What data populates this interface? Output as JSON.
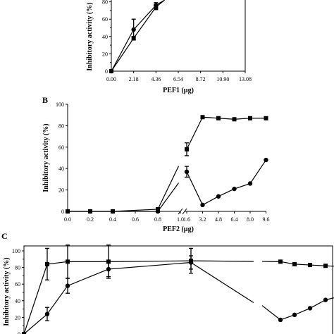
{
  "chart_data": [
    {
      "panel": "",
      "type": "line",
      "xlabel": "PEF1 (µg)",
      "ylabel": "Inhibitory activity (%)",
      "x_ticks": [
        "0.00",
        "2.18",
        "4.36",
        "6.54",
        "8.72",
        "10.90",
        "13.08"
      ],
      "y_ticks": [
        "0",
        "20",
        "40",
        "60",
        "80"
      ],
      "xlim": [
        0,
        13.08
      ],
      "ylim": [
        0,
        100
      ],
      "series": [
        {
          "marker": "circle",
          "x": [
            0,
            2.18,
            4.36,
            5.2
          ],
          "y": [
            0,
            48,
            76,
            82
          ],
          "err": [
            0,
            12,
            3,
            0
          ]
        },
        {
          "marker": "square",
          "x": [
            0,
            2.18,
            4.36,
            5.2
          ],
          "y": [
            0,
            38,
            74,
            82
          ],
          "err": [
            0,
            2,
            3,
            0
          ]
        }
      ]
    },
    {
      "panel": "B",
      "type": "line",
      "xlabel": "PEF2 (µg)",
      "ylabel": "Inhibitory activity (%)",
      "x_ticks": [
        "0.0",
        "0.2",
        "0.4",
        "0.6",
        "0.8",
        "1.0",
        "1.6",
        "3.2",
        "4.8",
        "6.4",
        "8.0",
        "9.6"
      ],
      "y_ticks": [
        "0",
        "20",
        "40",
        "60",
        "80",
        "100"
      ],
      "ylim": [
        0,
        100
      ],
      "axis_break": true,
      "series": [
        {
          "marker": "square",
          "x": [
            "0.0",
            "0.2",
            "0.4",
            "0.8",
            "1.6",
            "3.2",
            "4.8",
            "6.4",
            "8.0",
            "9.6"
          ],
          "y": [
            0,
            0,
            0,
            2,
            58,
            88,
            87,
            86,
            87,
            87
          ],
          "err": [
            0,
            0,
            0,
            1,
            6,
            0,
            0,
            0,
            0,
            0
          ]
        },
        {
          "marker": "circle",
          "x": [
            "0.0",
            "0.2",
            "0.4",
            "0.8",
            "1.6",
            "3.2",
            "4.8",
            "6.4",
            "8.0",
            "9.6"
          ],
          "y": [
            0,
            0,
            0,
            0,
            37,
            6,
            14,
            21,
            26,
            48
          ],
          "err": [
            0,
            0,
            0,
            1,
            5,
            0,
            0,
            0,
            0,
            0
          ]
        }
      ]
    },
    {
      "panel": "C",
      "type": "line",
      "ylabel": "Inhibitory activity (%)",
      "y_ticks": [
        "0",
        "20",
        "40",
        "60",
        "80",
        "100"
      ],
      "ylim": [
        0,
        100
      ],
      "axis_break": true,
      "series": [
        {
          "marker": "square",
          "y": [
            0,
            84,
            87,
            87,
            88,
            87,
            84,
            83,
            82,
            81
          ],
          "err": [
            0,
            19,
            20,
            20,
            15,
            0,
            0,
            0,
            0,
            0
          ]
        },
        {
          "marker": "circle",
          "y": [
            0,
            24,
            58,
            78,
            86,
            17,
            23,
            31,
            41,
            46
          ],
          "err": [
            0,
            8,
            9,
            9,
            8,
            0,
            0,
            0,
            0,
            0
          ]
        }
      ]
    }
  ]
}
